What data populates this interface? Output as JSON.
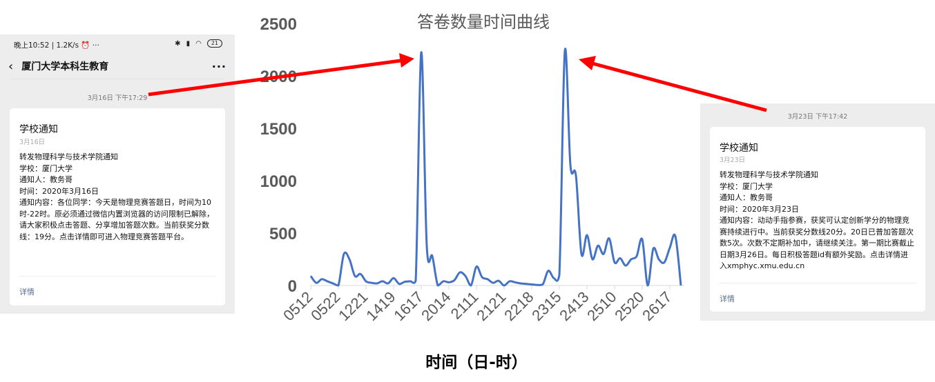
{
  "left_screenshot": {
    "status_time": "晚上10:52 | 1.2K/s ⏰ ···",
    "status_battery": "21",
    "nav_title": "厦门大学本科生教育",
    "nav_more": "···",
    "timestamp": "3月16日 下午17:29",
    "card": {
      "title": "学校通知",
      "date": "3月16日",
      "lines": [
        "转发物理科学与技术学院通知",
        "学校：厦门大学",
        "通知人：教务哥",
        "时间：2020年3月16日",
        "通知内容：各位同学：今天是物理竞赛答题日，时间为10时-22时。原必须通过微信内置浏览器的访问限制已解除，请大家积极点击答题、分享增加答题次数。当前获奖分数线：19分。点击详情即可进入物理竞赛答题平台。"
      ],
      "link": "详情"
    }
  },
  "right_screenshot": {
    "timestamp": "3月23日 下午17:42",
    "card": {
      "title": "学校通知",
      "date": "3月23日",
      "lines": [
        "转发物理科学与技术学院通知",
        "学校：厦门大学",
        "通知人：教务哥",
        "时间：2020年3月23日",
        "通知内容：动动手指参赛，获奖可认定创新学分的物理竞赛持续进行中。当前获奖分数线20分。20日已普加答题次数5次。次数不定期补加中，请继续关注。第一期比赛截止日期3月26日。每日积极答题id有额外奖励。点击详情进入xmphyc.xmu.edu.cn"
      ],
      "link": "详情"
    }
  },
  "colors": {
    "line": "#4472c4",
    "arrow": "#ff0000",
    "panel_bg": "#ededed"
  },
  "chart_data": {
    "type": "line",
    "title": "答卷数量时间曲线",
    "xlabel": "时间（日-时）",
    "ylabel": "",
    "ylim": [
      0,
      2500
    ],
    "yticks": [
      0,
      500,
      1000,
      1500,
      2000,
      2500
    ],
    "tick_labels": [
      "0512",
      "0522",
      "1221",
      "1419",
      "1617",
      "2014",
      "2111",
      "2121",
      "2218",
      "2315",
      "2413",
      "2510",
      "2520",
      "2617"
    ],
    "tick_every": 5,
    "grid": false,
    "values": [
      90,
      25,
      60,
      40,
      20,
      0,
      300,
      250,
      90,
      110,
      40,
      25,
      20,
      40,
      20,
      70,
      15,
      35,
      40,
      45,
      2225,
      380,
      280,
      0,
      40,
      30,
      50,
      125,
      90,
      0,
      180,
      80,
      60,
      25,
      45,
      0,
      40,
      30,
      20,
      15,
      10,
      5,
      10,
      140,
      70,
      100,
      2240,
      1150,
      1050,
      300,
      480,
      250,
      380,
      300,
      450,
      220,
      260,
      190,
      250,
      280,
      440,
      0,
      350,
      250,
      220,
      360,
      470,
      0
    ]
  }
}
